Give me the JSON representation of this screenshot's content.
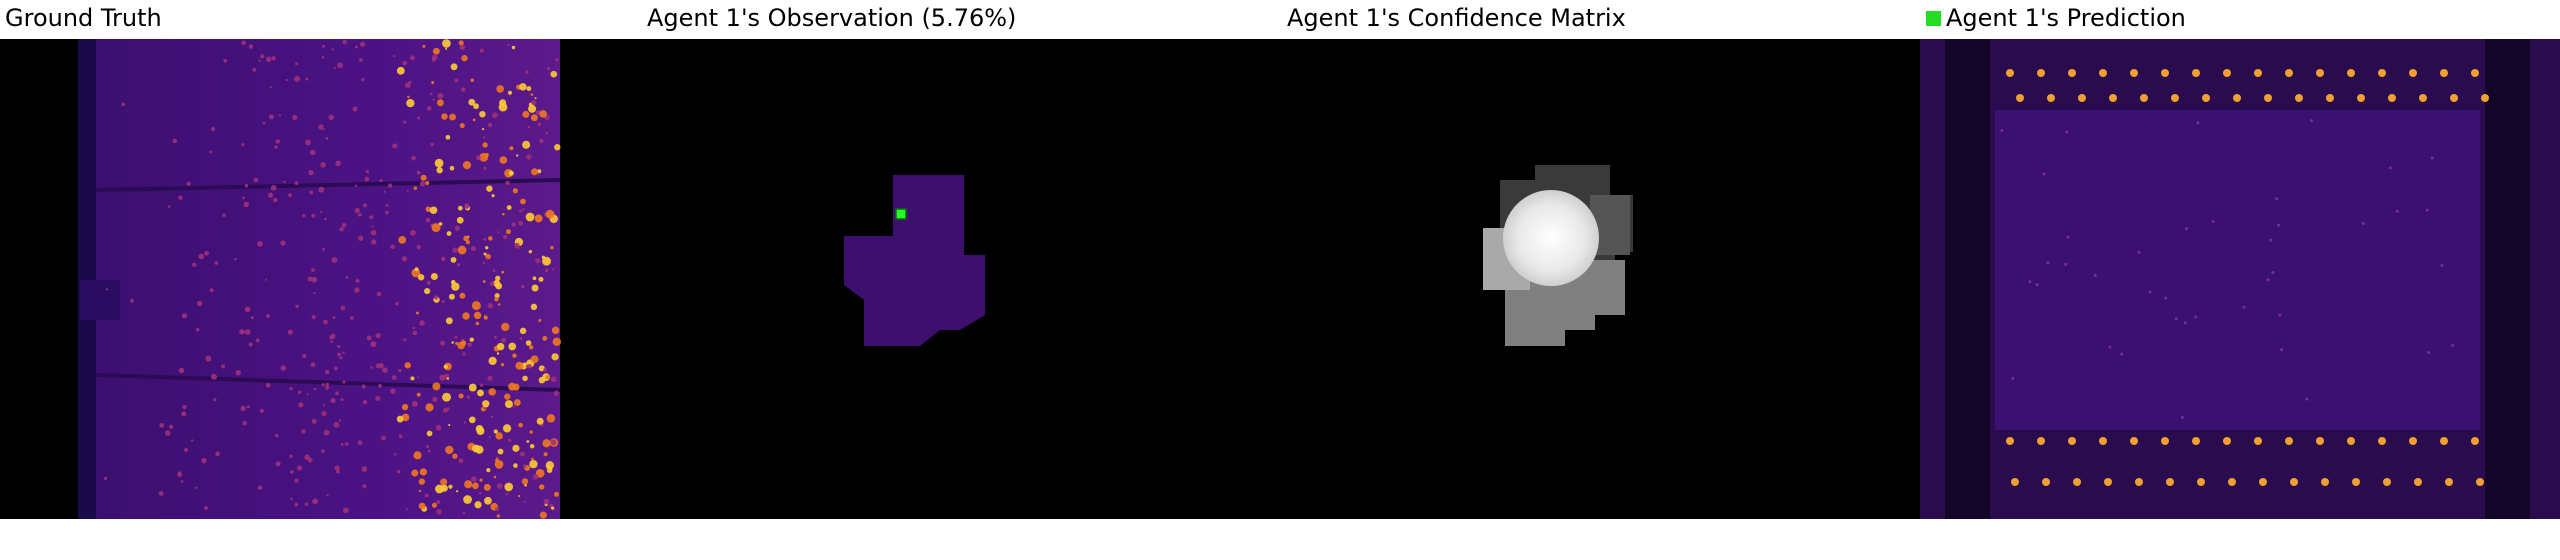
{
  "panels": [
    {
      "title": "Ground Truth"
    },
    {
      "title": "Agent 1's Observation (5.76%)"
    },
    {
      "title": "Agent 1's Confidence Matrix"
    },
    {
      "title": "Agent 1's Prediction"
    }
  ]
}
